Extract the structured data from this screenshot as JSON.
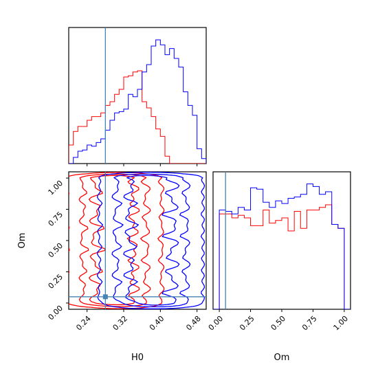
{
  "chart_data": [
    {
      "type": "histogram",
      "panel": "H0 marginal",
      "bins_x": [
        0.2,
        0.21,
        0.22,
        0.23,
        0.24,
        0.25,
        0.26,
        0.27,
        0.28,
        0.29,
        0.3,
        0.31,
        0.32,
        0.33,
        0.34,
        0.35,
        0.36,
        0.37,
        0.38,
        0.39,
        0.4,
        0.41,
        0.42,
        0.43,
        0.44,
        0.45,
        0.46,
        0.47,
        0.48,
        0.49,
        0.5
      ],
      "truth_x": 0.28,
      "ticks": [
        0.24,
        0.32,
        0.4,
        0.48
      ],
      "series": [
        {
          "color": "#ff0000",
          "counts": [
            0.15,
            0.26,
            0.3,
            0.3,
            0.35,
            0.38,
            0.38,
            0.41,
            0.47,
            0.5,
            0.56,
            0.6,
            0.7,
            0.71,
            0.74,
            0.75,
            0.5,
            0.45,
            0.38,
            0.28,
            0.22,
            0.06,
            0,
            0,
            0,
            0,
            0,
            0,
            0,
            0
          ]
        },
        {
          "color": "#0000ff",
          "counts": [
            0,
            0.05,
            0.1,
            0.11,
            0.15,
            0.14,
            0.17,
            0.2,
            0.27,
            0.35,
            0.41,
            0.42,
            0.44,
            0.56,
            0.54,
            0.6,
            0.74,
            0.8,
            0.95,
            1.0,
            0.96,
            0.88,
            0.93,
            0.85,
            0.78,
            0.58,
            0.47,
            0.39,
            0.12,
            0.04
          ]
        }
      ]
    },
    {
      "type": "contour",
      "panel": "H0 vs Om",
      "xlabel": "H0",
      "ylabel": "Om",
      "xlim": [
        0.2,
        0.5
      ],
      "ylim": [
        -0.05,
        1.05
      ],
      "xticks": [
        0.24,
        0.32,
        0.4,
        0.48
      ],
      "yticks": [
        0.0,
        0.25,
        0.5,
        0.75,
        1.0
      ],
      "truth": {
        "H0": 0.28,
        "Om": 0.05
      },
      "series": [
        {
          "color": "#ff0000",
          "mean_x": 0.3,
          "sigma_x": 0.05
        },
        {
          "color": "#0000ff",
          "mean_x": 0.38,
          "sigma_x": 0.055
        }
      ]
    },
    {
      "type": "histogram",
      "panel": "Om marginal",
      "xlabel": "Om",
      "bins_x": [
        -0.05,
        0.0,
        0.05,
        0.1,
        0.15,
        0.2,
        0.25,
        0.3,
        0.35,
        0.4,
        0.45,
        0.5,
        0.55,
        0.6,
        0.65,
        0.7,
        0.75,
        0.8,
        0.85,
        0.9,
        0.95,
        1.0,
        1.05
      ],
      "truth_x": 0.05,
      "xticks": [
        0.0,
        0.25,
        0.5,
        0.75,
        1.0
      ],
      "series": [
        {
          "color": "#ff0000",
          "counts": [
            0.0,
            0.73,
            0.73,
            0.7,
            0.72,
            0.7,
            0.64,
            0.64,
            0.76,
            0.66,
            0.68,
            0.7,
            0.6,
            0.75,
            0.62,
            0.76,
            0.76,
            0.78,
            0.8,
            0.65,
            0.62,
            0.0
          ]
        },
        {
          "color": "#0000ff",
          "counts": [
            0.0,
            0.76,
            0.75,
            0.73,
            0.78,
            0.76,
            0.93,
            0.92,
            0.82,
            0.78,
            0.83,
            0.81,
            0.85,
            0.86,
            0.88,
            0.96,
            0.94,
            0.88,
            0.9,
            0.65,
            0.62,
            0.0
          ]
        }
      ]
    }
  ]
}
